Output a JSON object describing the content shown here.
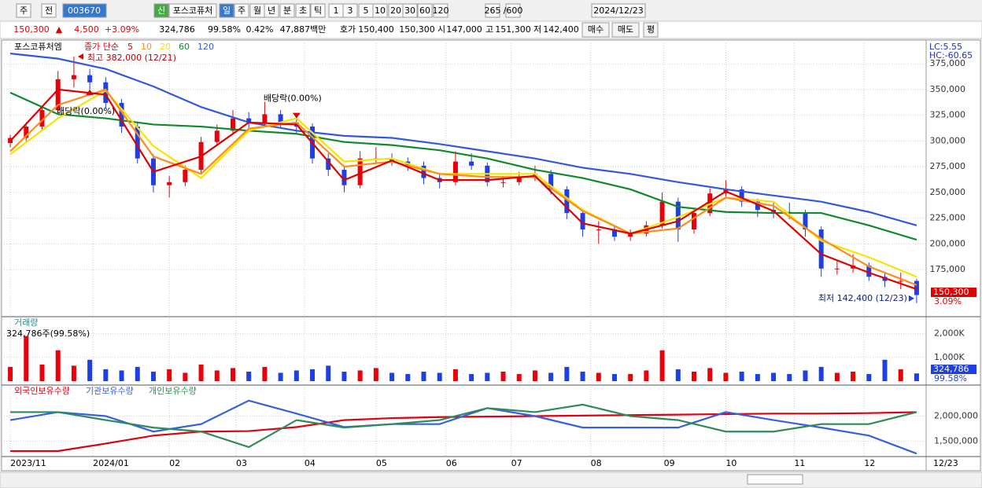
{
  "toolbar": {
    "items": [
      "주",
      "전",
      "003670",
      "신",
      "포스코퓨처",
      "일",
      "주",
      "월",
      "년",
      "분",
      "초",
      "틱",
      "1",
      "3",
      "5",
      "10",
      "20",
      "30",
      "60",
      "120",
      "265",
      "/600",
      "2024/12/23"
    ]
  },
  "info_bar": {
    "items": [
      {
        "text": "150,300",
        "color": "#e00000"
      },
      {
        "text": "▲",
        "color": "#e00000"
      },
      {
        "text": "4,500",
        "color": "#e00000"
      },
      {
        "text": "+3.09%",
        "color": "#e00000"
      },
      {
        "text": "324,786",
        "color": "#000000"
      },
      {
        "text": "99.58%",
        "color": "#000000"
      },
      {
        "text": "0.42%",
        "color": "#000000"
      },
      {
        "text": "47,887백만",
        "color": "#000000"
      },
      {
        "text": "호가",
        "color": "#000000"
      },
      {
        "text": "150,400",
        "color": "#000000"
      },
      {
        "text": "150,300",
        "color": "#000000"
      },
      {
        "text": "시",
        "color": "#000000"
      },
      {
        "text": "147,000",
        "color": "#000000"
      },
      {
        "text": "고",
        "color": "#000000"
      },
      {
        "text": "151,300",
        "color": "#000000"
      },
      {
        "text": "저",
        "color": "#000000"
      },
      {
        "text": "142,400",
        "color": "#000000"
      },
      {
        "text": "매수",
        "color": "#000000"
      },
      {
        "text": "매도",
        "color": "#000000"
      },
      {
        "text": "평",
        "color": "#000000"
      }
    ]
  },
  "chart_data": [
    {
      "type": "candlestick",
      "title": "포스코퓨처엠",
      "legend_title": "종가 단순",
      "up_color": "#e8000b",
      "down_color": "#1f3fe0",
      "open": [
        298000,
        303000,
        314000,
        330000,
        360000,
        364000,
        357000,
        337000,
        314000,
        283000,
        257000,
        260000,
        272000,
        299000,
        310000,
        322000,
        318000,
        326000,
        318000,
        314000,
        283000,
        272000,
        257000,
        283000,
        283000,
        280000,
        276000,
        264000,
        260000,
        280000,
        276000,
        260000,
        260000,
        264000,
        268000,
        253000,
        230000,
        214000,
        214000,
        207000,
        210000,
        218000,
        241000,
        214000,
        230000,
        249000,
        253000,
        241000,
        233000,
        231000,
        230000,
        214000,
        176000,
        176000,
        179000,
        168000,
        164000,
        164000
      ],
      "high": [
        306000,
        318000,
        334000,
        368000,
        382000,
        370000,
        362000,
        341000,
        318000,
        287000,
        266000,
        276000,
        304000,
        316000,
        330000,
        328000,
        338000,
        330000,
        322000,
        317000,
        288000,
        276000,
        290000,
        294000,
        288000,
        284000,
        280000,
        268000,
        290000,
        288000,
        279000,
        266000,
        270000,
        276000,
        272000,
        256000,
        234000,
        222000,
        217000,
        214000,
        222000,
        250000,
        245000,
        234000,
        254000,
        262000,
        256000,
        244000,
        240000,
        240000,
        233000,
        217000,
        184000,
        190000,
        182000,
        172000,
        172000,
        166000
      ],
      "low": [
        294000,
        300000,
        310000,
        326000,
        352000,
        350000,
        332000,
        308000,
        278000,
        250000,
        245000,
        256000,
        268000,
        295000,
        306000,
        312000,
        314000,
        313000,
        308000,
        278000,
        266000,
        250000,
        254000,
        279000,
        276000,
        271000,
        258000,
        254000,
        257000,
        272000,
        256000,
        255000,
        257000,
        261000,
        248000,
        224000,
        207000,
        200000,
        203000,
        203000,
        207000,
        215000,
        202000,
        210000,
        227000,
        246000,
        236000,
        226000,
        225000,
        224000,
        207000,
        168000,
        170000,
        172000,
        164000,
        158000,
        156000,
        142400
      ],
      "close": [
        303000,
        314000,
        330000,
        360000,
        364000,
        357000,
        337000,
        314000,
        283000,
        257000,
        260000,
        272000,
        299000,
        310000,
        322000,
        318000,
        326000,
        318000,
        314000,
        283000,
        272000,
        257000,
        283000,
        283000,
        280000,
        276000,
        264000,
        260000,
        280000,
        276000,
        260000,
        260000,
        264000,
        268000,
        253000,
        230000,
        214000,
        214000,
        207000,
        210000,
        218000,
        241000,
        214000,
        230000,
        249000,
        253000,
        241000,
        233000,
        231000,
        230000,
        214000,
        176000,
        176000,
        179000,
        168000,
        164000,
        164000,
        150300
      ],
      "ma_x": [
        0,
        3,
        6,
        9,
        12,
        15,
        18,
        21,
        24,
        27,
        30,
        33,
        36,
        39,
        42,
        45,
        48,
        51,
        54,
        57
      ],
      "series": [
        {
          "name": "5",
          "color": "#e00000",
          "values": [
            300000,
            350000,
            345000,
            270000,
            285000,
            318000,
            316000,
            262000,
            281000,
            262000,
            262000,
            266000,
            220000,
            210000,
            222000,
            251000,
            232000,
            190000,
            172000,
            156000
          ]
        },
        {
          "name": "10",
          "color": "#ff8c1a",
          "values": [
            290000,
            335000,
            350000,
            285000,
            268000,
            312000,
            318000,
            275000,
            280000,
            268000,
            265000,
            265000,
            232000,
            210000,
            215000,
            245000,
            237000,
            205000,
            178000,
            160000
          ]
        },
        {
          "name": "20",
          "color": "#f5e400",
          "values": [
            287000,
            322000,
            349000,
            295000,
            264000,
            310000,
            322000,
            280000,
            283000,
            268000,
            268000,
            268000,
            233000,
            210000,
            226000,
            245000,
            241000,
            203000,
            187000,
            168000
          ]
        },
        {
          "name": "60",
          "color": "#0d8a2c",
          "values": [
            347000,
            326000,
            322000,
            316000,
            314000,
            310000,
            307000,
            299000,
            296000,
            291000,
            283000,
            272000,
            264000,
            253000,
            236000,
            231000,
            230000,
            230000,
            218000,
            204000
          ]
        },
        {
          "name": "120",
          "color": "#3457e0",
          "values": [
            385000,
            380000,
            370000,
            353000,
            333000,
            318000,
            310000,
            305000,
            303000,
            297000,
            290000,
            283000,
            274000,
            268000,
            260000,
            253000,
            247000,
            241000,
            231000,
            218000
          ]
        }
      ],
      "annotations": [
        {
          "text": "최고 382,000 (12/21)",
          "x": 4,
          "y": 382000
        },
        {
          "text": "배당락(0.00%)",
          "x": 5,
          "y": 350000
        },
        {
          "text": "배당락(0.00%)",
          "x": 18,
          "y": 322000
        },
        {
          "text": "최저 142,400 (12/23)",
          "x": 57,
          "y": 142400
        }
      ],
      "side_labels": [
        "LC:5.55",
        "HC:-60.65"
      ],
      "last_label": "150,300",
      "last_change": "3.09%",
      "ylim": [
        130000,
        395000
      ],
      "yticks": [
        {
          "value": 375000,
          "label": "375,000"
        },
        {
          "value": 350000,
          "label": "350,000"
        },
        {
          "value": 325000,
          "label": "325,000"
        },
        {
          "value": 300000,
          "label": "300,000"
        },
        {
          "value": 275000,
          "label": "275,000"
        },
        {
          "value": 250000,
          "label": "250,000"
        },
        {
          "value": 225000,
          "label": "225,000"
        },
        {
          "value": 200000,
          "label": "200,000"
        },
        {
          "value": 175000,
          "label": "175,000"
        }
      ],
      "grid": true
    },
    {
      "type": "volume",
      "title": "거래량",
      "subtitle": "324,786주(99.58%)",
      "last_label": "324,786",
      "last_ratio": "99.58%",
      "values": [
        600000,
        1900000,
        700000,
        1300000,
        650000,
        900000,
        500000,
        450000,
        600000,
        400000,
        500000,
        350000,
        700000,
        450000,
        550000,
        400000,
        600000,
        350000,
        450000,
        500000,
        650000,
        400000,
        450000,
        550000,
        350000,
        300000,
        400000,
        350000,
        500000,
        300000,
        350000,
        400000,
        300000,
        450000,
        350000,
        600000,
        400000,
        350000,
        300000,
        300000,
        450000,
        1300000,
        500000,
        400000,
        550000,
        350000,
        400000,
        300000,
        350000,
        300000,
        450000,
        600000,
        350000,
        400000,
        300000,
        900000,
        500000,
        324786
      ],
      "ylim": [
        0,
        2650000
      ],
      "yticks": [
        {
          "value": 2000000,
          "label": "2,000K"
        },
        {
          "value": 1000000,
          "label": "1,000K"
        }
      ]
    },
    {
      "type": "line",
      "x": [
        0,
        3,
        6,
        9,
        12,
        15,
        18,
        21,
        24,
        27,
        30,
        33,
        36,
        39,
        42,
        45,
        48,
        51,
        54,
        57
      ],
      "series": [
        {
          "name": "외국인보유수량",
          "color": "#e00010",
          "values": [
            1300000,
            1300000,
            1450000,
            1610000,
            1690000,
            1700000,
            1780000,
            1920000,
            1960000,
            1980000,
            1990000,
            2000000,
            2010000,
            2020000,
            2030000,
            2040000,
            2050000,
            2050000,
            2060000,
            2080000
          ]
        },
        {
          "name": "기관보유수량",
          "color": "#3560e0",
          "values": [
            1920000,
            2080000,
            2000000,
            1690000,
            1840000,
            2310000,
            2050000,
            1780000,
            1840000,
            1840000,
            2160000,
            2000000,
            1770000,
            1770000,
            1770000,
            2080000,
            1920000,
            1770000,
            1610000,
            1250000
          ]
        },
        {
          "name": "개인보유수량",
          "color": "#2e8b57",
          "values": [
            2080000,
            2080000,
            1920000,
            1770000,
            1690000,
            1380000,
            1920000,
            1770000,
            1840000,
            1920000,
            2160000,
            2080000,
            2230000,
            2000000,
            1920000,
            1690000,
            1690000,
            1840000,
            1840000,
            2080000
          ]
        }
      ],
      "ylim": [
        1190000,
        2590000
      ],
      "yticks": [
        {
          "value": 2000000,
          "label": "2,000,000"
        },
        {
          "value": 1500000,
          "label": "1,500,000"
        }
      ],
      "xlim": [
        -0.4,
        57.4
      ],
      "xticks": [
        {
          "value": 0,
          "label": "2023/11"
        },
        {
          "value": 5.2,
          "label": "2024/01"
        },
        {
          "value": 10,
          "label": "02"
        },
        {
          "value": 14.2,
          "label": "03"
        },
        {
          "value": 18.5,
          "label": "04"
        },
        {
          "value": 23,
          "label": "05"
        },
        {
          "value": 27.4,
          "label": "06"
        },
        {
          "value": 31.5,
          "label": "07"
        },
        {
          "value": 36.5,
          "label": "08"
        },
        {
          "value": 41.1,
          "label": "09"
        },
        {
          "value": 45,
          "label": "10"
        },
        {
          "value": 49.3,
          "label": "11"
        },
        {
          "value": 53.7,
          "label": "12"
        }
      ],
      "last_date": "12/23"
    }
  ]
}
